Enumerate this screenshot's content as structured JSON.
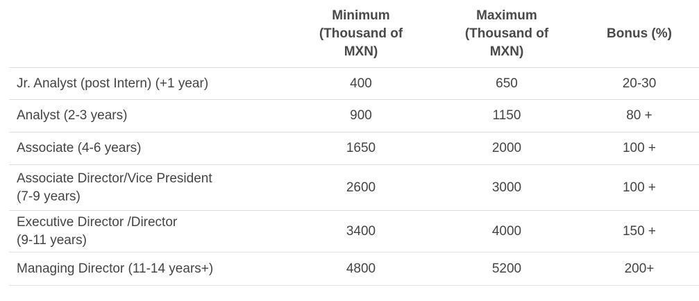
{
  "table": {
    "headers": [
      "",
      "Minimum\n(Thousand of\nMXN)",
      "Maximum\n(Thousand of\nMXN)",
      "Bonus (%)"
    ],
    "rows": [
      {
        "role": "Jr. Analyst (post Intern) (+1 year)",
        "min": "400",
        "max": "650",
        "bonus": "20-30"
      },
      {
        "role": "Analyst (2-3 years)",
        "min": "900",
        "max": "1150",
        "bonus": "80 +"
      },
      {
        "role": "Associate (4-6 years)",
        "min": "1650",
        "max": "2000",
        "bonus": "100 +"
      },
      {
        "role": "Associate Director/Vice President\n(7-9 years)",
        "min": "2600",
        "max": "3000",
        "bonus": "100 +"
      },
      {
        "role": "Executive Director /Director\n(9-11 years)",
        "min": "3400",
        "max": "4000",
        "bonus": "150 +"
      },
      {
        "role": "Managing Director (11-14 years+)",
        "min": "4800",
        "max": "5200",
        "bonus": "200+"
      }
    ]
  }
}
